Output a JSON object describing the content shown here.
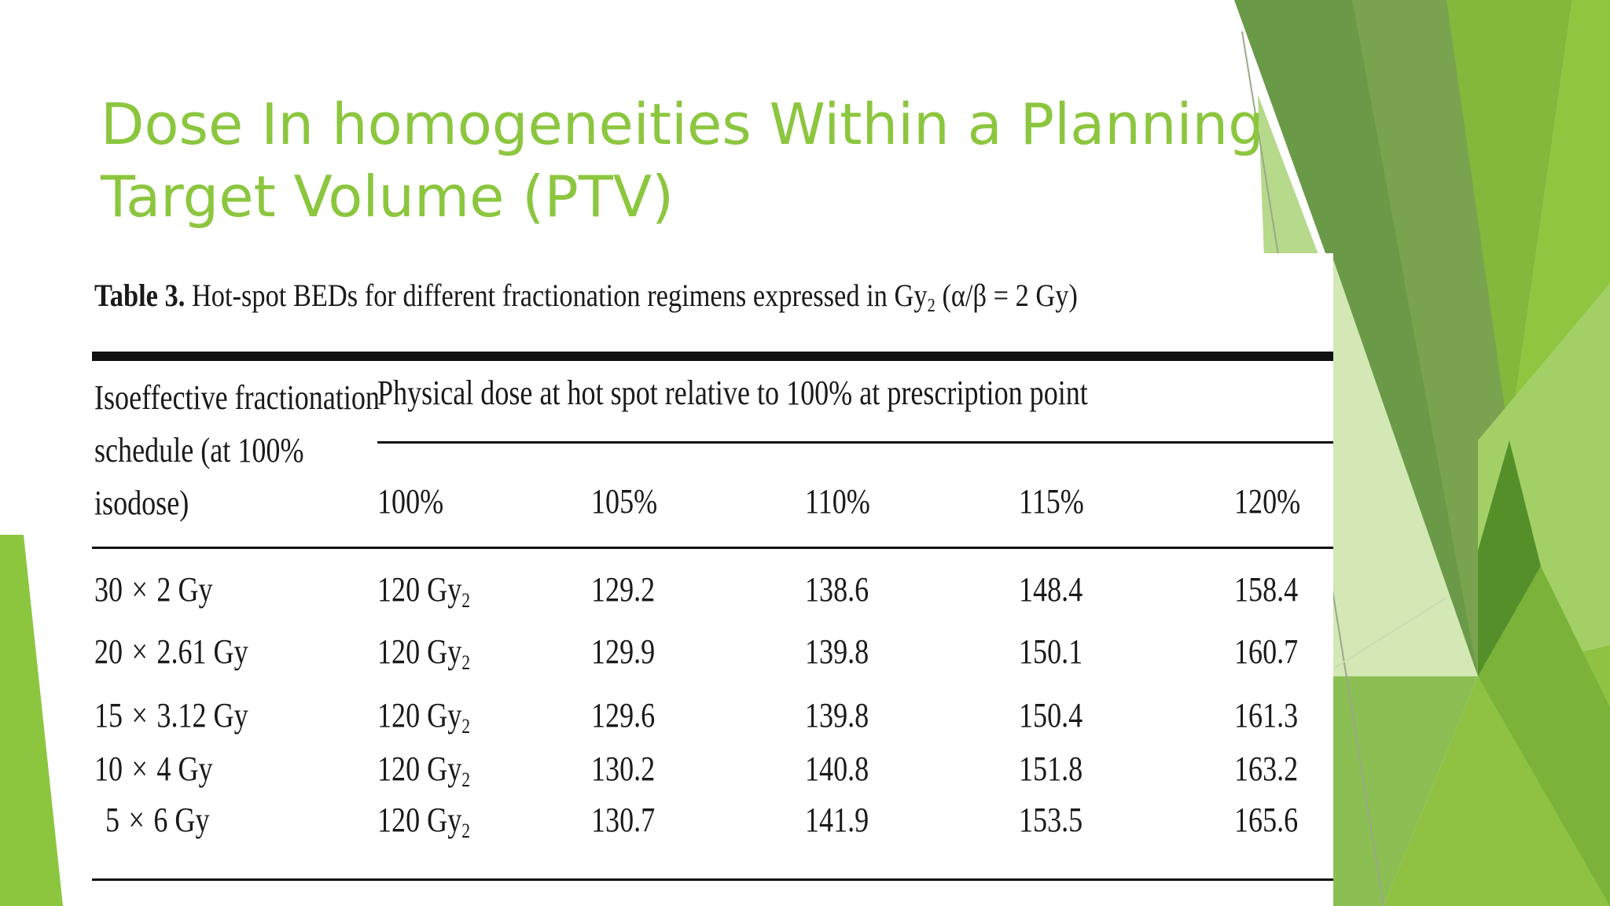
{
  "slide": {
    "title_line1": "Dose In homogeneities Within a Planning",
    "title_line2": "Target Volume (PTV)",
    "accent_color": "#8cc63f"
  },
  "table": {
    "caption_lead": "Table 3.",
    "caption_text": "Hot-spot BEDs for different fractionation regimens expressed in Gy",
    "caption_sub": "2",
    "caption_tail": "(α/β = 2 Gy)",
    "stub_header": [
      "Isoeffective fractionation",
      "schedule (at 100%",
      "isodose)"
    ],
    "spanning_header": "Physical dose at hot spot relative to 100% at prescription point",
    "columns": [
      "100%",
      "105%",
      "110%",
      "115%",
      "120%"
    ],
    "rows": [
      {
        "n": "30",
        "x": "×",
        "dose": "2 Gy",
        "base": "120 Gy",
        "base_sub": "2",
        "v105": "129.2",
        "v110": "138.6",
        "v115": "148.4",
        "v120": "158.4"
      },
      {
        "n": "20",
        "x": "×",
        "dose": "2.61 Gy",
        "base": "120 Gy",
        "base_sub": "2",
        "v105": "129.9",
        "v110": "139.8",
        "v115": "150.1",
        "v120": "160.7"
      },
      {
        "n": "15",
        "x": "×",
        "dose": "3.12 Gy",
        "base": "120 Gy",
        "base_sub": "2",
        "v105": "129.6",
        "v110": "139.8",
        "v115": "150.4",
        "v120": "161.3"
      },
      {
        "n": "10",
        "x": "×",
        "dose": "4 Gy",
        "base": "120 Gy",
        "base_sub": "2",
        "v105": "130.2",
        "v110": "140.8",
        "v115": "151.8",
        "v120": "163.2"
      },
      {
        "n": "5",
        "x": "×",
        "dose": "6 Gy",
        "base": "120 Gy",
        "base_sub": "2",
        "v105": "130.7",
        "v110": "141.9",
        "v115": "153.5",
        "v120": "165.6"
      }
    ]
  }
}
